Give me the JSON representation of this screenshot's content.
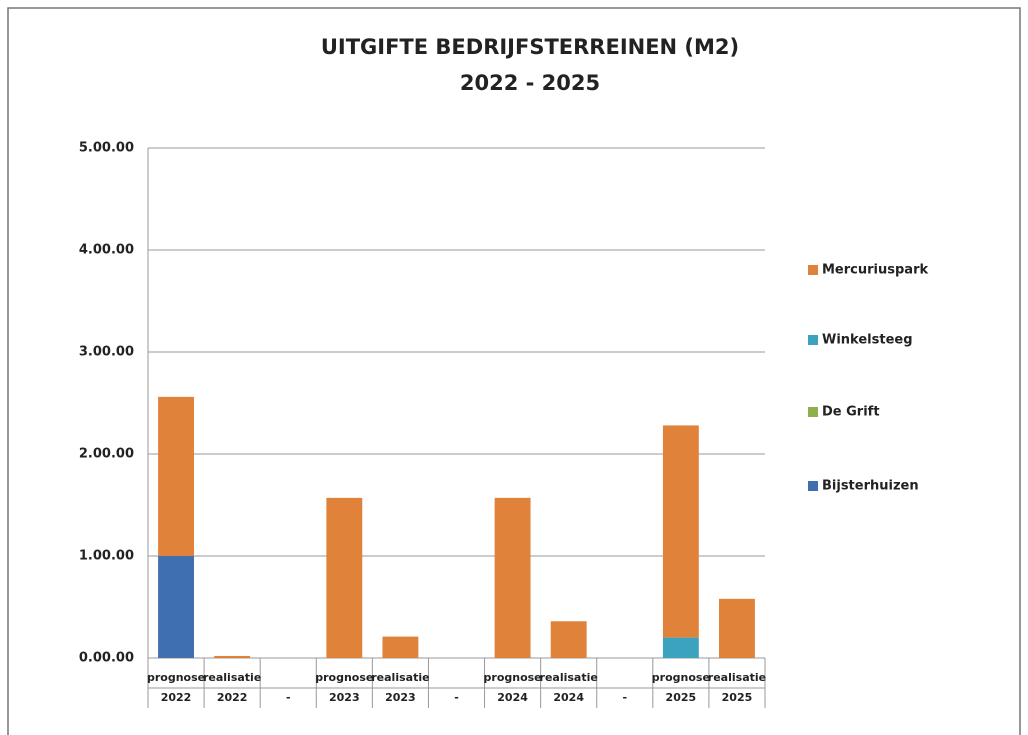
{
  "chart_data": {
    "type": "stacked_bar",
    "title": "UITGIFTE BEDRIJFSTERREINEN (M2)",
    "subtitle": "2022 - 2025",
    "categories": [
      "prognose",
      "realisatie",
      null,
      "prognose",
      "realisatie",
      null,
      "prognose",
      "realisatie",
      null,
      "prognose",
      "realisatie"
    ],
    "category_years": [
      "2022",
      "2022",
      "-",
      "2023",
      "2023",
      "-",
      "2024",
      "2024",
      "-",
      "2025",
      "2025"
    ],
    "series": [
      {
        "name": "Bijsterhuizen",
        "color": "#3f6fae",
        "values": [
          1.0,
          0,
          null,
          0,
          0,
          null,
          0,
          0,
          null,
          0,
          0
        ]
      },
      {
        "name": "De Grift",
        "color": "#8db04a",
        "values": [
          0,
          0,
          null,
          0,
          0,
          null,
          0,
          0,
          null,
          0,
          0
        ]
      },
      {
        "name": "Winkelsteeg",
        "color": "#3ba3bd",
        "values": [
          0,
          0,
          null,
          0,
          0,
          null,
          0,
          0,
          null,
          0.2,
          0
        ]
      },
      {
        "name": "Mercuriuspark",
        "color": "#e0823a",
        "values": [
          1.56,
          0.02,
          null,
          1.57,
          0.21,
          null,
          1.57,
          0.36,
          null,
          2.08,
          0.58
        ]
      }
    ],
    "ylim": [
      0,
      5
    ],
    "yticks": [
      {
        "value": 0,
        "label": "0.00.00"
      },
      {
        "value": 1,
        "label": "1.00.00"
      },
      {
        "value": 2,
        "label": "2.00.00"
      },
      {
        "value": 3,
        "label": "3.00.00"
      },
      {
        "value": 4,
        "label": "4.00.00"
      },
      {
        "value": 5,
        "label": "5.00.00"
      }
    ],
    "grid": true,
    "legend": "right"
  }
}
